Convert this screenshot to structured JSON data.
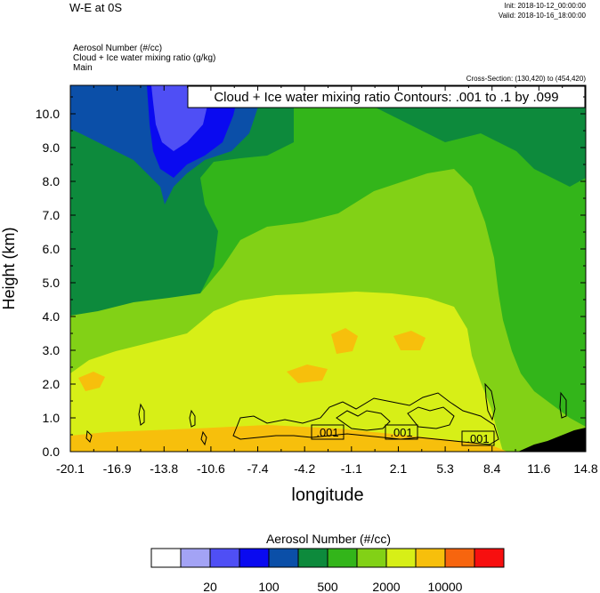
{
  "header": {
    "title": "W-E at 0S",
    "init": "Init: 2018-10-12_00:00:00",
    "valid": "Valid: 2018-10-16_18:00:00",
    "fields": [
      "Aerosol Number   (#/cc)",
      "Cloud + Ice water mixing ratio   (g/kg)",
      "Main"
    ],
    "cross_section": "Cross-Section: (130,420) to (454,420)"
  },
  "chart_data": {
    "type": "heatmap",
    "subtype": "filled-contour cross-section with line-contour overlay",
    "xlabel": "longitude",
    "ylabel": "Height (km)",
    "x_ticks": [
      "-20.1",
      "-16.9",
      "-13.8",
      "-10.6",
      "-7.4",
      "-4.2",
      "-1.1",
      "2.1",
      "5.3",
      "8.4",
      "11.6",
      "14.8"
    ],
    "y_ticks": [
      "0.0",
      "1.0",
      "2.0",
      "3.0",
      "4.0",
      "5.0",
      "6.0",
      "7.0",
      "8.0",
      "9.0",
      "10.0"
    ],
    "xlim": [
      -20.1,
      14.8
    ],
    "ylim": [
      0.0,
      10.8
    ],
    "contour_info": "Cloud + Ice water mixing ratio Contours: .001 to .1 by .099",
    "contour_labels": [
      ".001",
      ".001",
      ".001"
    ],
    "colorbar": {
      "title": "Aerosol Number  (#/cc)",
      "labels": [
        "20",
        "100",
        "500",
        "2000",
        "10000"
      ],
      "colors": [
        "#ffffff",
        "#a3a3f5",
        "#4f4ff5",
        "#0a0af0",
        "#0b4fa8",
        "#0d8a3c",
        "#33b51a",
        "#82d116",
        "#d7ef17",
        "#f7bf0c",
        "#f7650e",
        "#f70f0f"
      ]
    },
    "terrain_color": "#000000"
  }
}
